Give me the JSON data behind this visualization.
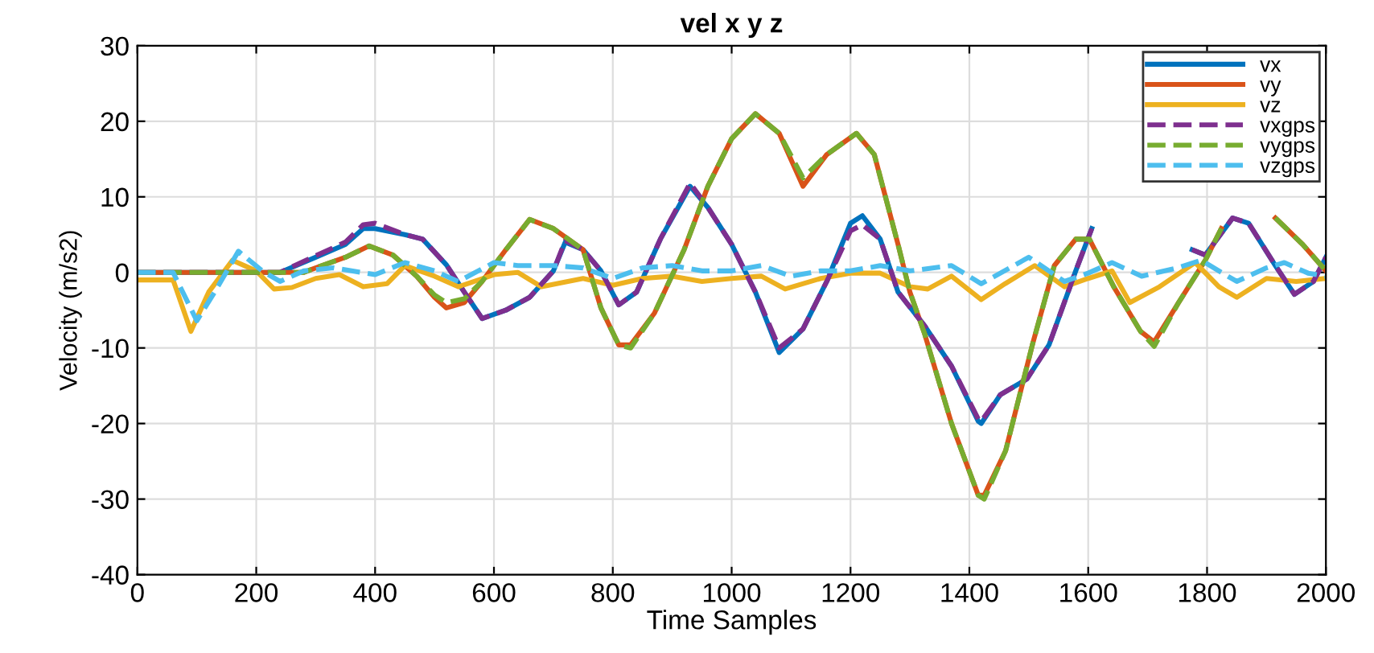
{
  "chart_data": {
    "type": "line",
    "title": "vel x y z",
    "xlabel": "Time Samples",
    "ylabel": "Velocity (m/s2)",
    "xlim": [
      0,
      2000
    ],
    "xticks": [
      0,
      200,
      400,
      600,
      800,
      1000,
      1200,
      1400,
      1600,
      1800,
      2000
    ],
    "ylim": [
      -40,
      30
    ],
    "yticks": [
      -40,
      -30,
      -20,
      -10,
      0,
      10,
      20,
      30
    ],
    "grid": true,
    "legend": "top right",
    "series": [
      {
        "name": "vx",
        "color": "#0072bd",
        "line_style": "solid",
        "x": [
          0,
          200,
          240,
          300,
          350,
          380,
          400,
          450,
          480,
          520,
          550,
          580,
          620,
          660,
          700,
          720,
          750,
          780,
          810,
          840,
          880,
          930,
          960,
          1000,
          1040,
          1080,
          1120,
          1160,
          1200,
          1220,
          1250,
          1280,
          1325,
          1370,
          1415,
          1420,
          1452,
          1497,
          1534,
          1579,
          1606,
          1620,
          1760,
          1775,
          1797,
          1843,
          1870,
          1915,
          1947,
          1979,
          2000
        ],
        "values": [
          0,
          0,
          0,
          2,
          3.7,
          5.8,
          5.8,
          5,
          4.4,
          1,
          -2.6,
          -6.1,
          -5,
          -3.3,
          0.2,
          4,
          3,
          0.2,
          -4.3,
          -2.6,
          4.4,
          11.4,
          8.6,
          3.7,
          -2.6,
          -10.6,
          -7.5,
          -1.2,
          6.5,
          7.5,
          4.4,
          -2.6,
          -7.1,
          -12.4,
          -19.7,
          -20,
          -16.2,
          -14.1,
          -9.6,
          0.2,
          5.8,
          null,
          null,
          3,
          2.3,
          7.2,
          6.5,
          0.9,
          -2.9,
          -1.2,
          2
        ]
      },
      {
        "name": "vy",
        "color": "#d95319",
        "line_style": "solid",
        "x": [
          0,
          280,
          300,
          350,
          390,
          430,
          470,
          500,
          520,
          550,
          580,
          620,
          660,
          700,
          750,
          780,
          810,
          830,
          870,
          920,
          960,
          1000,
          1040,
          1080,
          1120,
          1160,
          1210,
          1240,
          1280,
          1300,
          1325,
          1370,
          1415,
          1425,
          1461,
          1506,
          1543,
          1579,
          1602,
          1643,
          1688,
          1711,
          1752,
          1797,
          1824,
          1840,
          1900,
          1915,
          1961,
          2000
        ],
        "values": [
          0,
          0,
          0.6,
          2,
          3.5,
          2.3,
          -0.5,
          -3.3,
          -4.7,
          -4,
          -1.2,
          3,
          7,
          5.8,
          3,
          -4.7,
          -9.6,
          -9.6,
          -5.4,
          3,
          11.4,
          17.7,
          21,
          18.4,
          11.4,
          15.6,
          18.4,
          15.6,
          3.7,
          -2.6,
          -8.2,
          -20,
          -29.5,
          -29.5,
          -23.6,
          -9.6,
          0.9,
          4.4,
          4.4,
          -1.9,
          -7.8,
          -9.2,
          -4,
          1.6,
          5.8,
          null,
          null,
          7.2,
          3.7,
          0.2
        ]
      },
      {
        "name": "vz",
        "color": "#edb120",
        "line_style": "solid",
        "x": [
          0,
          60,
          90,
          120,
          160,
          200,
          230,
          260,
          300,
          340,
          380,
          420,
          450,
          500,
          540,
          600,
          640,
          680,
          750,
          800,
          850,
          900,
          950,
          1000,
          1050,
          1090,
          1150,
          1200,
          1250,
          1300,
          1330,
          1370,
          1420,
          1460,
          1510,
          1560,
          1600,
          1640,
          1670,
          1720,
          1780,
          1820,
          1850,
          1900,
          1950,
          2000
        ],
        "values": [
          -1,
          -1,
          -7.8,
          -2.6,
          1.6,
          0.2,
          -2.2,
          -2,
          -0.8,
          -0.3,
          -1.9,
          -1.5,
          0.9,
          -0.5,
          -1.9,
          -0.3,
          0,
          -1.9,
          -0.8,
          -1.7,
          -0.8,
          -0.5,
          -1.2,
          -0.8,
          -0.5,
          -2.2,
          -0.8,
          -0.1,
          -0.1,
          -1.9,
          -2.2,
          -0.5,
          -3.6,
          -1.5,
          0.9,
          -1.9,
          -0.8,
          0.2,
          -4,
          -1.9,
          1.3,
          -1.9,
          -3.3,
          -0.8,
          -1.2,
          -0.8
        ]
      },
      {
        "name": "vxgps",
        "color": "#7e2f8e",
        "line_style": "dashed",
        "x": [
          0,
          200,
          240,
          300,
          350,
          380,
          400,
          450,
          480,
          520,
          550,
          580,
          620,
          660,
          700,
          720,
          750,
          780,
          810,
          840,
          880,
          930,
          960,
          1000,
          1040,
          1080,
          1120,
          1160,
          1200,
          1220,
          1250,
          1280,
          1325,
          1370,
          1415,
          1420,
          1452,
          1497,
          1534,
          1579,
          1606,
          1620,
          1760,
          1775,
          1797,
          1843,
          1870,
          1915,
          1947,
          1979,
          2000
        ],
        "values": [
          0,
          0,
          0,
          2.2,
          4,
          6.3,
          6.5,
          5,
          4.4,
          1,
          -2.6,
          -6.1,
          -5,
          -3.3,
          0.2,
          4.2,
          3,
          0.2,
          -4.3,
          -2.6,
          4.4,
          11.8,
          8.6,
          3.7,
          -2.6,
          -10,
          -7.5,
          -1.2,
          5.5,
          6.3,
          4.4,
          -2.6,
          -7.1,
          -12.4,
          -19.4,
          -19.7,
          -16.2,
          -14.1,
          -9.6,
          0.2,
          5.8,
          null,
          null,
          3,
          2.3,
          7.2,
          6.5,
          0.9,
          -2.9,
          -1.2,
          2
        ]
      },
      {
        "name": "vygps",
        "color": "#77ac30",
        "line_style": "dashed",
        "x": [
          0,
          280,
          300,
          350,
          390,
          430,
          470,
          500,
          520,
          550,
          580,
          620,
          660,
          700,
          750,
          780,
          810,
          830,
          870,
          920,
          960,
          1000,
          1040,
          1080,
          1120,
          1160,
          1210,
          1240,
          1280,
          1300,
          1325,
          1370,
          1415,
          1425,
          1461,
          1506,
          1543,
          1579,
          1602,
          1643,
          1688,
          1711,
          1752,
          1797,
          1824,
          1840,
          1900,
          1915,
          1961,
          2000
        ],
        "values": [
          0,
          0,
          0.6,
          2,
          3.5,
          2.3,
          -0.5,
          -3,
          -4,
          -3.5,
          -1.2,
          3,
          7,
          5.8,
          3,
          -4.7,
          -9.6,
          -10,
          -5.4,
          3,
          11.4,
          17.7,
          21,
          18.4,
          12.5,
          15.6,
          18.4,
          15.6,
          3.7,
          -2.6,
          -8.2,
          -20,
          -29.5,
          -30,
          -23.6,
          -9.6,
          0.9,
          4.4,
          4.4,
          -1.9,
          -7.8,
          -9.8,
          -4,
          1.6,
          5.8,
          null,
          null,
          7.2,
          3.7,
          0.2
        ]
      },
      {
        "name": "vzgps",
        "color": "#4dbeee",
        "line_style": "dashed",
        "x": [
          0,
          60,
          100,
          130,
          170,
          210,
          240,
          280,
          330,
          400,
          450,
          500,
          540,
          600,
          640,
          700,
          750,
          800,
          850,
          900,
          950,
          1000,
          1050,
          1100,
          1150,
          1200,
          1250,
          1300,
          1370,
          1420,
          1500,
          1560,
          1600,
          1640,
          1690,
          1750,
          1790,
          1850,
          1900,
          1930,
          1970,
          2000
        ],
        "values": [
          0,
          0,
          -6.4,
          -2.6,
          2.8,
          0.2,
          -1.2,
          0.2,
          0.6,
          -0.3,
          1.3,
          0.2,
          -1.2,
          1.3,
          0.9,
          0.9,
          0.6,
          -0.8,
          0.6,
          0.9,
          0.2,
          0.2,
          0.9,
          -0.5,
          0.2,
          0.2,
          0.9,
          0.2,
          0.9,
          -1.5,
          2,
          -1.2,
          -0.1,
          1.3,
          -0.5,
          0.6,
          1.6,
          -1.2,
          0.6,
          1.3,
          -0.1,
          -0.5
        ]
      }
    ]
  }
}
